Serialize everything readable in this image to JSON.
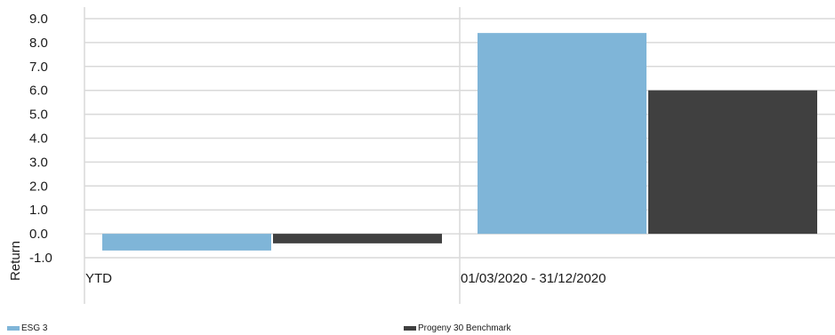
{
  "chart_data": {
    "type": "bar",
    "title": "",
    "xlabel": "",
    "ylabel": "Return",
    "ylim": [
      -1.0,
      9.0
    ],
    "yticks": [
      9.0,
      8.0,
      7.0,
      6.0,
      5.0,
      4.0,
      3.0,
      2.0,
      1.0,
      0.0,
      -1.0
    ],
    "categories": [
      "YTD",
      "01/03/2020 - 31/12/2020"
    ],
    "series": [
      {
        "name": "ESG 3",
        "color": "#7fb5d8",
        "values": [
          -0.7,
          8.4
        ]
      },
      {
        "name": "Progeny 30 Benchmark",
        "color": "#404040",
        "values": [
          -0.4,
          6.0
        ]
      }
    ],
    "grid": true,
    "legend_position": "bottom"
  }
}
